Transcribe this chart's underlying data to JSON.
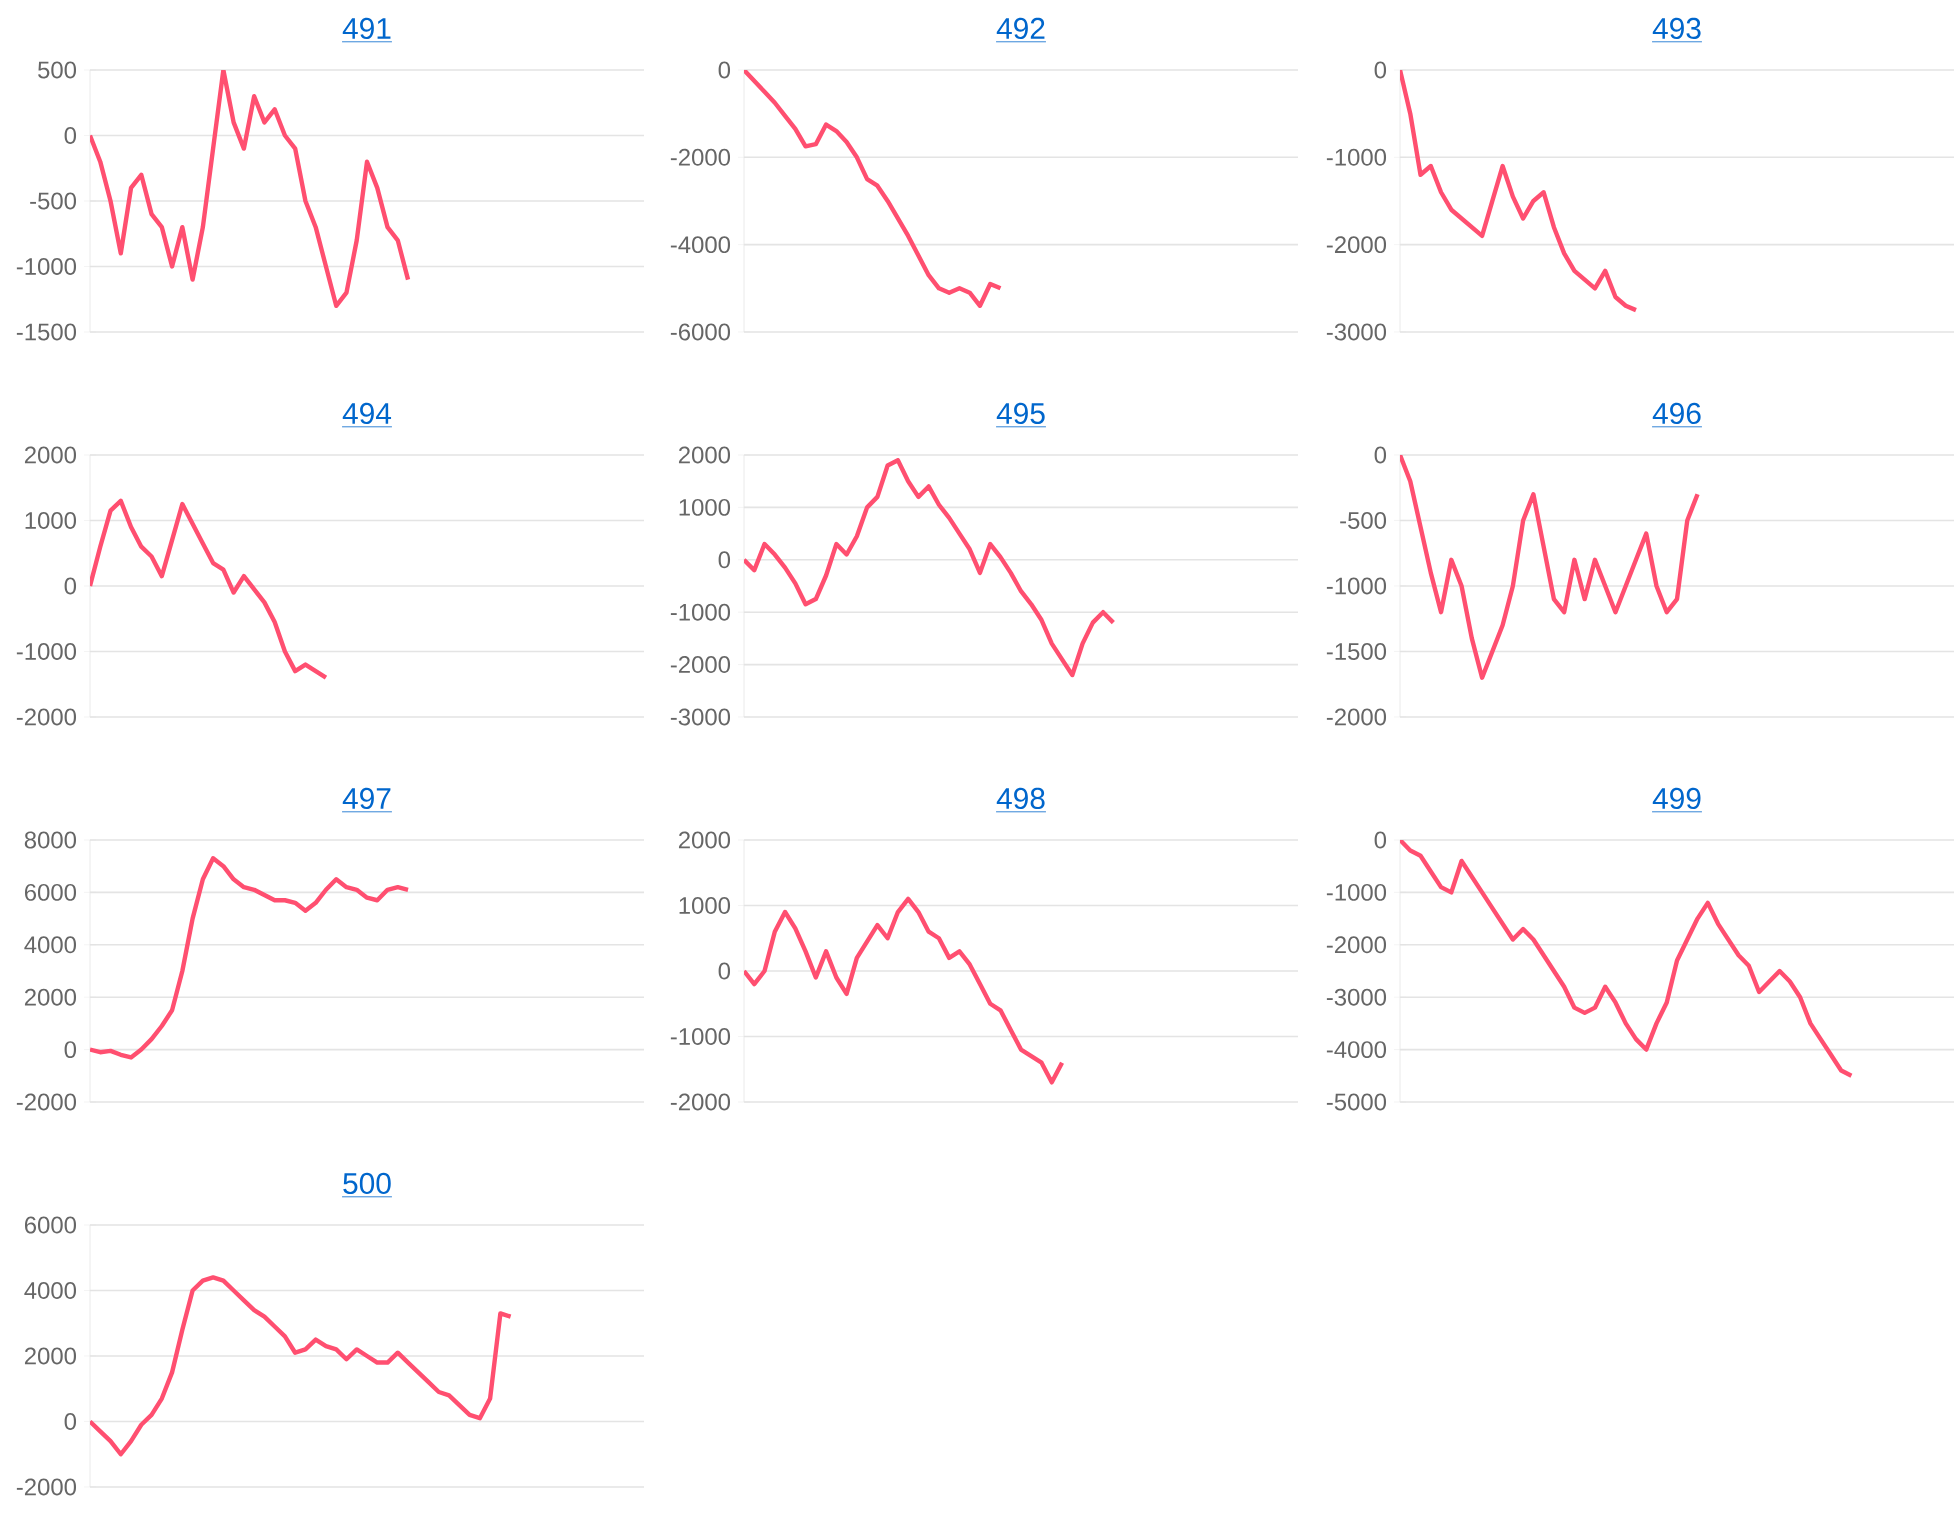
{
  "chart_data": [
    {
      "type": "line",
      "title": "491",
      "color": "#ff4f70",
      "grid": "y",
      "tick_labels": "y",
      "ylim": [
        -1500,
        500
      ],
      "yticks": [
        -1500,
        -1000,
        -500,
        0,
        500
      ],
      "categories": [
        null,
        null,
        null,
        null,
        null,
        null,
        null,
        null,
        null,
        null,
        null,
        null,
        null,
        null,
        null,
        null,
        null,
        null,
        null,
        null,
        null,
        null,
        null,
        null,
        null,
        null,
        null,
        null,
        null,
        null,
        null,
        null,
        null,
        null,
        null,
        null,
        null,
        null,
        null,
        null,
        null,
        null,
        null,
        null,
        null,
        null,
        null,
        null,
        null,
        null,
        null,
        null,
        null,
        null,
        null
      ],
      "values": [
        0,
        -200,
        -500,
        -900,
        -400,
        -300,
        -600,
        -700,
        -1000,
        -700,
        -1100,
        -700,
        -100,
        500,
        100,
        -100,
        300,
        100,
        200,
        0,
        -100,
        -500,
        -700,
        -1000,
        -1300,
        -1200,
        -800,
        -200,
        -400,
        -700,
        -800,
        -1100,
        null,
        null,
        null,
        null,
        null,
        null,
        null,
        null,
        null,
        null,
        null,
        null,
        null,
        null,
        null,
        null,
        null,
        null,
        null,
        null,
        null,
        null,
        null
      ]
    },
    {
      "type": "line",
      "title": "492",
      "color": "#ff4f70",
      "grid": "y",
      "tick_labels": "y",
      "ylim": [
        -6000,
        0
      ],
      "yticks": [
        -6000,
        -4000,
        -2000,
        0
      ],
      "categories": [
        null,
        null,
        null,
        null,
        null,
        null,
        null,
        null,
        null,
        null,
        null,
        null,
        null,
        null,
        null,
        null,
        null,
        null,
        null,
        null,
        null,
        null,
        null,
        null,
        null,
        null,
        null,
        null,
        null,
        null,
        null,
        null,
        null,
        null,
        null,
        null,
        null,
        null,
        null,
        null,
        null,
        null,
        null,
        null,
        null,
        null,
        null,
        null,
        null,
        null,
        null,
        null,
        null,
        null,
        null
      ],
      "values": [
        0,
        -250,
        -500,
        -750,
        -1050,
        -1350,
        -1750,
        -1700,
        -1250,
        -1400,
        -1650,
        -2000,
        -2500,
        -2650,
        -3000,
        -3400,
        -3800,
        -4250,
        -4700,
        -5000,
        -5100,
        -5000,
        -5100,
        -5400,
        -4900,
        -5000,
        null,
        null,
        null,
        null,
        null,
        null,
        null,
        null,
        null,
        null,
        null,
        null,
        null,
        null,
        null,
        null,
        null,
        null,
        null,
        null,
        null,
        null,
        null,
        null,
        null,
        null,
        null,
        null,
        null
      ]
    },
    {
      "type": "line",
      "title": "493",
      "color": "#ff4f70",
      "grid": "y",
      "tick_labels": "y",
      "ylim": [
        -3000,
        0
      ],
      "yticks": [
        -3000,
        -2000,
        -1000,
        0
      ],
      "categories": [
        null,
        null,
        null,
        null,
        null,
        null,
        null,
        null,
        null,
        null,
        null,
        null,
        null,
        null,
        null,
        null,
        null,
        null,
        null,
        null,
        null,
        null,
        null,
        null,
        null,
        null,
        null,
        null,
        null,
        null,
        null,
        null,
        null,
        null,
        null,
        null,
        null,
        null,
        null,
        null,
        null,
        null,
        null,
        null,
        null,
        null,
        null,
        null,
        null,
        null,
        null,
        null,
        null,
        null,
        null
      ],
      "values": [
        0,
        -500,
        -1200,
        -1100,
        -1400,
        -1600,
        -1700,
        -1800,
        -1900,
        -1500,
        -1100,
        -1450,
        -1700,
        -1500,
        -1400,
        -1800,
        -2100,
        -2300,
        -2400,
        -2500,
        -2300,
        -2600,
        -2700,
        -2750,
        null,
        null,
        null,
        null,
        null,
        null,
        null,
        null,
        null,
        null,
        null,
        null,
        null,
        null,
        null,
        null,
        null,
        null,
        null,
        null,
        null,
        null,
        null,
        null,
        null,
        null,
        null,
        null,
        null,
        null,
        null
      ]
    },
    {
      "type": "line",
      "title": "494",
      "color": "#ff4f70",
      "grid": "y",
      "tick_labels": "y",
      "ylim": [
        -2000,
        2000
      ],
      "yticks": [
        -2000,
        -1000,
        0,
        1000,
        2000
      ],
      "categories": [
        null,
        null,
        null,
        null,
        null,
        null,
        null,
        null,
        null,
        null,
        null,
        null,
        null,
        null,
        null,
        null,
        null,
        null,
        null,
        null,
        null,
        null,
        null,
        null,
        null,
        null,
        null,
        null,
        null,
        null,
        null,
        null,
        null,
        null,
        null,
        null,
        null,
        null,
        null,
        null,
        null,
        null,
        null,
        null,
        null,
        null,
        null,
        null,
        null,
        null,
        null,
        null,
        null,
        null,
        null
      ],
      "values": [
        0,
        600,
        1150,
        1300,
        900,
        600,
        450,
        150,
        700,
        1250,
        950,
        650,
        350,
        250,
        -100,
        150,
        -50,
        -250,
        -550,
        -1000,
        -1300,
        -1200,
        -1300,
        -1400,
        null,
        null,
        null,
        null,
        null,
        null,
        null,
        null,
        null,
        null,
        null,
        null,
        null,
        null,
        null,
        null,
        null,
        null,
        null,
        null,
        null,
        null,
        null,
        null,
        null,
        null,
        null,
        null,
        null,
        null,
        null
      ]
    },
    {
      "type": "line",
      "title": "495",
      "color": "#ff4f70",
      "grid": "y",
      "tick_labels": "y",
      "ylim": [
        -3000,
        2000
      ],
      "yticks": [
        -3000,
        -2000,
        -1000,
        0,
        1000,
        2000
      ],
      "categories": [
        null,
        null,
        null,
        null,
        null,
        null,
        null,
        null,
        null,
        null,
        null,
        null,
        null,
        null,
        null,
        null,
        null,
        null,
        null,
        null,
        null,
        null,
        null,
        null,
        null,
        null,
        null,
        null,
        null,
        null,
        null,
        null,
        null,
        null,
        null,
        null,
        null,
        null,
        null,
        null,
        null,
        null,
        null,
        null,
        null,
        null,
        null,
        null,
        null,
        null,
        null,
        null,
        null,
        null,
        null
      ],
      "values": [
        0,
        -200,
        300,
        100,
        -150,
        -450,
        -850,
        -750,
        -300,
        300,
        100,
        450,
        1000,
        1200,
        1800,
        1900,
        1500,
        1200,
        1400,
        1050,
        800,
        500,
        200,
        -250,
        300,
        50,
        -250,
        -600,
        -850,
        -1150,
        -1600,
        -1900,
        -2200,
        -1600,
        -1200,
        -1000,
        -1200,
        null,
        null,
        null,
        null,
        null,
        null,
        null,
        null,
        null,
        null,
        null,
        null,
        null,
        null,
        null,
        null,
        null,
        null
      ]
    },
    {
      "type": "line",
      "title": "496",
      "color": "#ff4f70",
      "grid": "y",
      "tick_labels": "y",
      "ylim": [
        -2000,
        0
      ],
      "yticks": [
        -2000,
        -1500,
        -1000,
        -500,
        0
      ],
      "categories": [
        null,
        null,
        null,
        null,
        null,
        null,
        null,
        null,
        null,
        null,
        null,
        null,
        null,
        null,
        null,
        null,
        null,
        null,
        null,
        null,
        null,
        null,
        null,
        null,
        null,
        null,
        null,
        null,
        null,
        null,
        null,
        null,
        null,
        null,
        null,
        null,
        null,
        null,
        null,
        null,
        null,
        null,
        null,
        null,
        null,
        null,
        null,
        null,
        null,
        null,
        null,
        null,
        null,
        null,
        null
      ],
      "values": [
        0,
        -200,
        -550,
        -900,
        -1200,
        -800,
        -1000,
        -1400,
        -1700,
        -1500,
        -1300,
        -1000,
        -500,
        -300,
        -700,
        -1100,
        -1200,
        -800,
        -1100,
        -800,
        -1000,
        -1200,
        -1000,
        -800,
        -600,
        -1000,
        -1200,
        -1100,
        -500,
        -300,
        null,
        null,
        null,
        null,
        null,
        null,
        null,
        null,
        null,
        null,
        null,
        null,
        null,
        null,
        null,
        null,
        null,
        null,
        null,
        null,
        null,
        null,
        null,
        null,
        null
      ]
    },
    {
      "type": "line",
      "title": "497",
      "color": "#ff4f70",
      "grid": "y",
      "tick_labels": "y",
      "ylim": [
        -2000,
        8000
      ],
      "yticks": [
        -2000,
        0,
        2000,
        4000,
        6000,
        8000
      ],
      "categories": [
        null,
        null,
        null,
        null,
        null,
        null,
        null,
        null,
        null,
        null,
        null,
        null,
        null,
        null,
        null,
        null,
        null,
        null,
        null,
        null,
        null,
        null,
        null,
        null,
        null,
        null,
        null,
        null,
        null,
        null,
        null,
        null,
        null,
        null,
        null,
        null,
        null,
        null,
        null,
        null,
        null,
        null,
        null,
        null,
        null,
        null,
        null,
        null,
        null,
        null,
        null,
        null,
        null,
        null,
        null
      ],
      "values": [
        0,
        -100,
        -50,
        -200,
        -300,
        0,
        400,
        900,
        1500,
        3000,
        5000,
        6500,
        7300,
        7000,
        6500,
        6200,
        6100,
        5900,
        5700,
        5700,
        5600,
        5300,
        5600,
        6100,
        6500,
        6200,
        6100,
        5800,
        5700,
        6100,
        6200,
        6100,
        null,
        null,
        null,
        null,
        null,
        null,
        null,
        null,
        null,
        null,
        null,
        null,
        null,
        null,
        null,
        null,
        null,
        null,
        null,
        null,
        null,
        null,
        null
      ]
    },
    {
      "type": "line",
      "title": "498",
      "color": "#ff4f70",
      "grid": "y",
      "tick_labels": "y",
      "ylim": [
        -2000,
        2000
      ],
      "yticks": [
        -2000,
        -1000,
        0,
        1000,
        2000
      ],
      "categories": [
        null,
        null,
        null,
        null,
        null,
        null,
        null,
        null,
        null,
        null,
        null,
        null,
        null,
        null,
        null,
        null,
        null,
        null,
        null,
        null,
        null,
        null,
        null,
        null,
        null,
        null,
        null,
        null,
        null,
        null,
        null,
        null,
        null,
        null,
        null,
        null,
        null,
        null,
        null,
        null,
        null,
        null,
        null,
        null,
        null,
        null,
        null,
        null,
        null,
        null,
        null,
        null,
        null,
        null,
        null
      ],
      "values": [
        0,
        -200,
        0,
        600,
        900,
        650,
        300,
        -100,
        300,
        -100,
        -350,
        200,
        450,
        700,
        500,
        900,
        1100,
        900,
        600,
        500,
        200,
        300,
        100,
        -200,
        -500,
        -600,
        -900,
        -1200,
        -1300,
        -1400,
        -1700,
        -1400,
        null,
        null,
        null,
        null,
        null,
        null,
        null,
        null,
        null,
        null,
        null,
        null,
        null,
        null,
        null,
        null,
        null,
        null,
        null,
        null,
        null,
        null,
        null
      ]
    },
    {
      "type": "line",
      "title": "499",
      "color": "#ff4f70",
      "grid": "y",
      "tick_labels": "y",
      "ylim": [
        -5000,
        0
      ],
      "yticks": [
        -5000,
        -4000,
        -3000,
        -2000,
        -1000,
        0
      ],
      "categories": [
        null,
        null,
        null,
        null,
        null,
        null,
        null,
        null,
        null,
        null,
        null,
        null,
        null,
        null,
        null,
        null,
        null,
        null,
        null,
        null,
        null,
        null,
        null,
        null,
        null,
        null,
        null,
        null,
        null,
        null,
        null,
        null,
        null,
        null,
        null,
        null,
        null,
        null,
        null,
        null,
        null,
        null,
        null,
        null,
        null,
        null,
        null,
        null,
        null,
        null,
        null,
        null,
        null,
        null,
        null
      ],
      "values": [
        0,
        -200,
        -300,
        -600,
        -900,
        -1000,
        -400,
        -700,
        -1000,
        -1300,
        -1600,
        -1900,
        -1700,
        -1900,
        -2200,
        -2500,
        -2800,
        -3200,
        -3300,
        -3200,
        -2800,
        -3100,
        -3500,
        -3800,
        -4000,
        -3500,
        -3100,
        -2300,
        -1900,
        -1500,
        -1200,
        -1600,
        -1900,
        -2200,
        -2400,
        -2900,
        -2700,
        -2500,
        -2700,
        -3000,
        -3500,
        -3800,
        -4100,
        -4400,
        -4500,
        null,
        null,
        null,
        null,
        null,
        null,
        null,
        null,
        null,
        null
      ]
    },
    {
      "type": "line",
      "title": "500",
      "color": "#ff4f70",
      "grid": "y",
      "tick_labels": "y",
      "ylim": [
        -2000,
        6000
      ],
      "yticks": [
        -2000,
        0,
        2000,
        4000,
        6000
      ],
      "categories": [
        null,
        null,
        null,
        null,
        null,
        null,
        null,
        null,
        null,
        null,
        null,
        null,
        null,
        null,
        null,
        null,
        null,
        null,
        null,
        null,
        null,
        null,
        null,
        null,
        null,
        null,
        null,
        null,
        null,
        null,
        null,
        null,
        null,
        null,
        null,
        null,
        null,
        null,
        null,
        null,
        null,
        null,
        null,
        null,
        null,
        null,
        null,
        null,
        null,
        null,
        null,
        null,
        null,
        null,
        null
      ],
      "values": [
        0,
        -300,
        -600,
        -1000,
        -600,
        -100,
        200,
        700,
        1500,
        2800,
        4000,
        4300,
        4400,
        4300,
        4000,
        3700,
        3400,
        3200,
        2900,
        2600,
        2100,
        2200,
        2500,
        2300,
        2200,
        1900,
        2200,
        2000,
        1800,
        1800,
        2100,
        1800,
        1500,
        1200,
        900,
        800,
        500,
        200,
        100,
        700,
        3300,
        3200,
        null,
        null,
        null,
        null,
        null,
        null,
        null,
        null,
        null,
        null,
        null,
        null,
        null
      ]
    }
  ]
}
